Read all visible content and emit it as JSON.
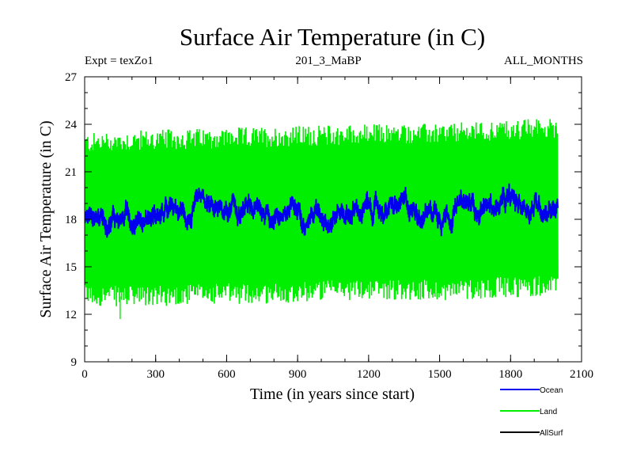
{
  "header": {
    "title": "Surface Air Temperature (in C)",
    "expt": "Expt = texZo1",
    "run": "201_3_MaBP",
    "period": "ALL_MONTHS"
  },
  "chart_data": {
    "type": "line",
    "title": "Surface Air Temperature (in C)",
    "xlabel": "Time (in years since start)",
    "ylabel": "Surface Air Temperature (in C)",
    "xlim": [
      0,
      2100
    ],
    "ylim": [
      9,
      27
    ],
    "x_ticks": [
      0,
      300,
      600,
      900,
      1200,
      1500,
      1800,
      2100
    ],
    "y_ticks": [
      9,
      12,
      15,
      18,
      21,
      24,
      27
    ],
    "x_minor_step": 100,
    "y_minor_step": 1,
    "grid": false,
    "legend_position": "bottom-right",
    "series": [
      {
        "name": "Land",
        "color": "#00ee00",
        "x_range": [
          0,
          2000
        ],
        "annual_cycle": true,
        "upper_envelope": [
          [
            0,
            22.8
          ],
          [
            250,
            23.0
          ],
          [
            500,
            23.1
          ],
          [
            750,
            23.2
          ],
          [
            1000,
            23.3
          ],
          [
            1250,
            23.4
          ],
          [
            1500,
            23.4
          ],
          [
            1750,
            23.6
          ],
          [
            2000,
            23.8
          ]
        ],
        "lower_envelope": [
          [
            0,
            13.2
          ],
          [
            250,
            13.1
          ],
          [
            500,
            13.3
          ],
          [
            750,
            13.3
          ],
          [
            1000,
            13.5
          ],
          [
            1250,
            13.6
          ],
          [
            1500,
            13.5
          ],
          [
            1750,
            13.7
          ],
          [
            2000,
            13.8
          ]
        ],
        "max_peak": 24.1,
        "min_trough": 11.7
      },
      {
        "name": "Ocean",
        "color": "#0000ee",
        "x_range": [
          0,
          2000
        ],
        "mean_trend": [
          [
            0,
            18.2
          ],
          [
            500,
            18.3
          ],
          [
            1000,
            18.5
          ],
          [
            1500,
            18.7
          ],
          [
            2000,
            19.0
          ]
        ],
        "amplitude": 0.45
      },
      {
        "name": "AllSurf",
        "color": "#000000",
        "x_range": [
          0,
          2000
        ],
        "values": []
      }
    ]
  }
}
